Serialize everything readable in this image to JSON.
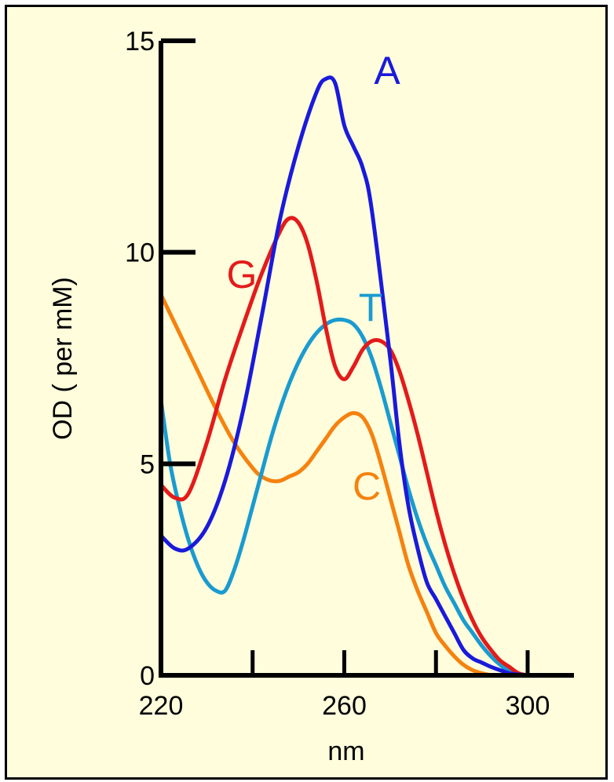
{
  "chart_data": {
    "type": "line",
    "title": "",
    "xlabel": "nm",
    "ylabel": "OD ( per mM)",
    "xlim": [
      220,
      300
    ],
    "ylim": [
      0,
      15
    ],
    "x_ticks": [
      220,
      240,
      260,
      280,
      300
    ],
    "x_tick_labels": [
      "220",
      "260",
      "300"
    ],
    "y_ticks": [
      0,
      5,
      10,
      15
    ],
    "y_tick_labels": [
      "0",
      "5",
      "10",
      "15"
    ],
    "grid": false,
    "legend": "inline labels",
    "series": [
      {
        "name": "A",
        "color": "#1a1adb",
        "x": [
          220,
          223,
          226,
          230,
          234,
          238,
          242,
          246,
          250,
          254,
          256,
          258,
          260,
          262,
          264,
          266,
          270,
          272,
          274,
          276,
          278,
          280,
          282,
          284,
          286,
          288,
          290,
          292,
          294,
          296,
          298,
          300
        ],
        "y": [
          3.3,
          3.0,
          3.0,
          3.5,
          4.6,
          6.3,
          8.5,
          10.8,
          12.5,
          13.8,
          14.1,
          14.0,
          13.0,
          12.5,
          12.0,
          11.0,
          7.5,
          5.5,
          4.0,
          3.0,
          2.2,
          1.8,
          1.4,
          1.0,
          0.6,
          0.4,
          0.3,
          0.2,
          0.12,
          0.05,
          0.02,
          0.0
        ]
      },
      {
        "name": "G",
        "color": "#e31b1b",
        "x": [
          220,
          223,
          226,
          230,
          234,
          238,
          242,
          246,
          248,
          250,
          252,
          254,
          256,
          258,
          260,
          262,
          264,
          266,
          268,
          270,
          272,
          274,
          276,
          278,
          280,
          282,
          284,
          286,
          288,
          290,
          292,
          294,
          296,
          298,
          300
        ],
        "y": [
          4.5,
          4.2,
          4.3,
          5.5,
          7.0,
          8.3,
          9.5,
          10.5,
          10.8,
          10.7,
          10.2,
          9.3,
          8.2,
          7.3,
          7.0,
          7.3,
          7.7,
          7.9,
          7.9,
          7.7,
          7.2,
          6.5,
          5.7,
          4.8,
          3.9,
          3.1,
          2.4,
          1.8,
          1.3,
          0.9,
          0.6,
          0.35,
          0.2,
          0.05,
          0.0
        ]
      },
      {
        "name": "T",
        "color": "#1a9bd0",
        "x": [
          220,
          222,
          224,
          226,
          228,
          230,
          232,
          234,
          236,
          238,
          240,
          242,
          244,
          246,
          248,
          250,
          252,
          254,
          256,
          258,
          260,
          262,
          264,
          266,
          268,
          270,
          272,
          274,
          276,
          278,
          280,
          282,
          284,
          286,
          288,
          290,
          292,
          294,
          296,
          298,
          300
        ],
        "y": [
          6.5,
          5.0,
          4.0,
          3.2,
          2.6,
          2.2,
          2.0,
          2.0,
          2.5,
          3.2,
          4.0,
          4.8,
          5.6,
          6.3,
          6.9,
          7.4,
          7.8,
          8.1,
          8.3,
          8.4,
          8.4,
          8.3,
          8.0,
          7.5,
          6.8,
          6.0,
          5.2,
          4.4,
          3.7,
          3.1,
          2.6,
          2.1,
          1.7,
          1.3,
          1.0,
          0.7,
          0.45,
          0.25,
          0.1,
          0.03,
          0.0
        ]
      },
      {
        "name": "C",
        "color": "#f5820f",
        "x": [
          220,
          224,
          228,
          232,
          236,
          240,
          242,
          244,
          246,
          248,
          250,
          252,
          254,
          256,
          258,
          260,
          262,
          264,
          266,
          268,
          270,
          272,
          274,
          276,
          278,
          280,
          282,
          284,
          286,
          288,
          290,
          292
        ],
        "y": [
          9.0,
          8.1,
          7.2,
          6.3,
          5.5,
          4.9,
          4.7,
          4.6,
          4.6,
          4.7,
          4.8,
          5.0,
          5.3,
          5.6,
          5.9,
          6.1,
          6.2,
          6.1,
          5.7,
          5.0,
          4.2,
          3.4,
          2.6,
          2.0,
          1.5,
          1.0,
          0.7,
          0.45,
          0.25,
          0.12,
          0.05,
          0.0
        ]
      }
    ]
  }
}
